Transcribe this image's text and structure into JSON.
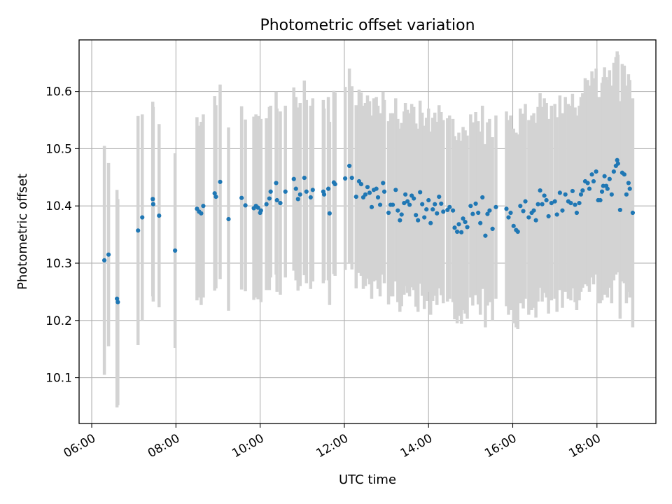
{
  "chart_data": {
    "type": "scatter",
    "title": "Photometric offset variation",
    "xlabel": "UTC time",
    "ylabel": "Photometric offset",
    "x_unit": "hours",
    "xlim": [
      5.7,
      19.4
    ],
    "ylim": [
      10.02,
      10.69
    ],
    "x_ticks": [
      6,
      8,
      10,
      12,
      14,
      16,
      18
    ],
    "x_tick_labels": [
      "06:00",
      "08:00",
      "10:00",
      "12:00",
      "14:00",
      "16:00",
      "18:00"
    ],
    "y_ticks": [
      10.1,
      10.2,
      10.3,
      10.4,
      10.5,
      10.6
    ],
    "y_tick_labels": [
      "10.1",
      "10.2",
      "10.3",
      "10.4",
      "10.5",
      "10.6"
    ],
    "grid": true,
    "colors": {
      "points": "#1f77b4",
      "error_bars": "#d3d3d3",
      "grid": "#b0b0b0"
    },
    "points": [
      [
        6.3,
        10.305,
        0.2
      ],
      [
        6.4,
        10.315,
        0.16
      ],
      [
        6.6,
        10.238,
        0.19
      ],
      [
        6.62,
        10.232,
        0.18
      ],
      [
        7.1,
        10.357,
        0.2
      ],
      [
        7.2,
        10.38,
        0.18
      ],
      [
        7.45,
        10.412,
        0.17
      ],
      [
        7.46,
        10.403,
        0.17
      ],
      [
        7.6,
        10.383,
        0.16
      ],
      [
        7.98,
        10.322,
        0.17
      ],
      [
        8.5,
        10.395,
        0.16
      ],
      [
        8.55,
        10.39,
        0.15
      ],
      [
        8.6,
        10.387,
        0.16
      ],
      [
        8.65,
        10.4,
        0.16
      ],
      [
        8.92,
        10.422,
        0.17
      ],
      [
        8.95,
        10.416,
        0.16
      ],
      [
        9.05,
        10.442,
        0.17
      ],
      [
        9.25,
        10.377,
        0.16
      ],
      [
        9.56,
        10.414,
        0.16
      ],
      [
        9.65,
        10.401,
        0.15
      ],
      [
        9.85,
        10.396,
        0.16
      ],
      [
        9.9,
        10.4,
        0.16
      ],
      [
        9.95,
        10.397,
        0.16
      ],
      [
        10.0,
        10.388,
        0.15
      ],
      [
        10.02,
        10.392,
        0.16
      ],
      [
        10.15,
        10.403,
        0.15
      ],
      [
        10.22,
        10.413,
        0.16
      ],
      [
        10.25,
        10.425,
        0.15
      ],
      [
        10.38,
        10.44,
        0.16
      ],
      [
        10.4,
        10.41,
        0.16
      ],
      [
        10.48,
        10.405,
        0.16
      ],
      [
        10.6,
        10.425,
        0.15
      ],
      [
        10.8,
        10.447,
        0.16
      ],
      [
        10.85,
        10.43,
        0.16
      ],
      [
        10.9,
        10.412,
        0.16
      ],
      [
        10.95,
        10.42,
        0.16
      ],
      [
        11.05,
        10.449,
        0.17
      ],
      [
        11.1,
        10.425,
        0.16
      ],
      [
        11.2,
        10.415,
        0.16
      ],
      [
        11.25,
        10.428,
        0.16
      ],
      [
        11.5,
        10.425,
        0.16
      ],
      [
        11.52,
        10.42,
        0.15
      ],
      [
        11.62,
        10.43,
        0.16
      ],
      [
        11.65,
        10.387,
        0.16
      ],
      [
        11.75,
        10.441,
        0.16
      ],
      [
        11.78,
        10.438,
        0.16
      ],
      [
        12.02,
        10.448,
        0.16
      ],
      [
        12.12,
        10.47,
        0.17
      ],
      [
        12.18,
        10.449,
        0.16
      ],
      [
        12.28,
        10.416,
        0.16
      ],
      [
        12.35,
        10.443,
        0.16
      ],
      [
        12.4,
        10.438,
        0.16
      ],
      [
        12.45,
        10.415,
        0.16
      ],
      [
        12.5,
        10.42,
        0.16
      ],
      [
        12.55,
        10.433,
        0.16
      ],
      [
        12.6,
        10.423,
        0.16
      ],
      [
        12.65,
        10.398,
        0.16
      ],
      [
        12.7,
        10.428,
        0.16
      ],
      [
        12.76,
        10.43,
        0.16
      ],
      [
        12.8,
        10.415,
        0.16
      ],
      [
        12.85,
        10.402,
        0.16
      ],
      [
        12.92,
        10.44,
        0.16
      ],
      [
        12.95,
        10.425,
        0.16
      ],
      [
        13.05,
        10.388,
        0.16
      ],
      [
        13.1,
        10.402,
        0.16
      ],
      [
        13.15,
        10.402,
        0.16
      ],
      [
        13.22,
        10.428,
        0.16
      ],
      [
        13.27,
        10.392,
        0.16
      ],
      [
        13.32,
        10.375,
        0.16
      ],
      [
        13.36,
        10.385,
        0.16
      ],
      [
        13.42,
        10.405,
        0.16
      ],
      [
        13.45,
        10.42,
        0.16
      ],
      [
        13.5,
        10.408,
        0.16
      ],
      [
        13.55,
        10.402,
        0.16
      ],
      [
        13.6,
        10.418,
        0.16
      ],
      [
        13.65,
        10.413,
        0.16
      ],
      [
        13.7,
        10.384,
        0.16
      ],
      [
        13.75,
        10.375,
        0.16
      ],
      [
        13.8,
        10.424,
        0.16
      ],
      [
        13.85,
        10.403,
        0.16
      ],
      [
        13.9,
        10.38,
        0.16
      ],
      [
        13.95,
        10.394,
        0.16
      ],
      [
        14.0,
        10.41,
        0.16
      ],
      [
        14.05,
        10.37,
        0.16
      ],
      [
        14.1,
        10.394,
        0.16
      ],
      [
        14.15,
        10.403,
        0.16
      ],
      [
        14.2,
        10.387,
        0.16
      ],
      [
        14.25,
        10.416,
        0.16
      ],
      [
        14.3,
        10.404,
        0.16
      ],
      [
        14.35,
        10.39,
        0.16
      ],
      [
        14.45,
        10.393,
        0.16
      ],
      [
        14.5,
        10.398,
        0.16
      ],
      [
        14.58,
        10.392,
        0.16
      ],
      [
        14.62,
        10.362,
        0.16
      ],
      [
        14.68,
        10.355,
        0.16
      ],
      [
        14.72,
        10.368,
        0.16
      ],
      [
        14.78,
        10.354,
        0.16
      ],
      [
        14.82,
        10.378,
        0.16
      ],
      [
        14.87,
        10.372,
        0.16
      ],
      [
        14.92,
        10.363,
        0.16
      ],
      [
        15.0,
        10.4,
        0.16
      ],
      [
        15.05,
        10.386,
        0.16
      ],
      [
        15.12,
        10.404,
        0.16
      ],
      [
        15.18,
        10.388,
        0.16
      ],
      [
        15.23,
        10.37,
        0.16
      ],
      [
        15.28,
        10.415,
        0.16
      ],
      [
        15.35,
        10.348,
        0.16
      ],
      [
        15.4,
        10.386,
        0.16
      ],
      [
        15.45,
        10.392,
        0.16
      ],
      [
        15.52,
        10.36,
        0.16
      ],
      [
        15.6,
        10.398,
        0.16
      ],
      [
        15.85,
        10.395,
        0.17
      ],
      [
        15.9,
        10.38,
        0.17
      ],
      [
        15.95,
        10.388,
        0.17
      ],
      [
        16.02,
        10.365,
        0.17
      ],
      [
        16.08,
        10.358,
        0.17
      ],
      [
        16.12,
        10.355,
        0.17
      ],
      [
        16.18,
        10.4,
        0.17
      ],
      [
        16.25,
        10.391,
        0.17
      ],
      [
        16.3,
        10.408,
        0.17
      ],
      [
        16.38,
        10.38,
        0.17
      ],
      [
        16.45,
        10.388,
        0.17
      ],
      [
        16.5,
        10.392,
        0.17
      ],
      [
        16.55,
        10.375,
        0.17
      ],
      [
        16.6,
        10.403,
        0.17
      ],
      [
        16.65,
        10.427,
        0.17
      ],
      [
        16.7,
        10.403,
        0.17
      ],
      [
        16.75,
        10.418,
        0.17
      ],
      [
        16.8,
        10.41,
        0.17
      ],
      [
        16.85,
        10.382,
        0.17
      ],
      [
        16.92,
        10.405,
        0.17
      ],
      [
        17.0,
        10.408,
        0.17
      ],
      [
        17.05,
        10.385,
        0.17
      ],
      [
        17.12,
        10.423,
        0.17
      ],
      [
        17.18,
        10.392,
        0.17
      ],
      [
        17.25,
        10.42,
        0.17
      ],
      [
        17.32,
        10.408,
        0.17
      ],
      [
        17.38,
        10.405,
        0.17
      ],
      [
        17.42,
        10.426,
        0.17
      ],
      [
        17.48,
        10.402,
        0.17
      ],
      [
        17.52,
        10.388,
        0.17
      ],
      [
        17.58,
        10.405,
        0.17
      ],
      [
        17.62,
        10.42,
        0.17
      ],
      [
        17.66,
        10.427,
        0.17
      ],
      [
        17.72,
        10.443,
        0.18
      ],
      [
        17.78,
        10.44,
        0.18
      ],
      [
        17.82,
        10.43,
        0.18
      ],
      [
        17.88,
        10.455,
        0.18
      ],
      [
        17.92,
        10.443,
        0.18
      ],
      [
        17.98,
        10.46,
        0.18
      ],
      [
        18.03,
        10.41,
        0.18
      ],
      [
        18.08,
        10.41,
        0.18
      ],
      [
        18.12,
        10.425,
        0.19
      ],
      [
        18.15,
        10.435,
        0.19
      ],
      [
        18.18,
        10.452,
        0.19
      ],
      [
        18.22,
        10.435,
        0.19
      ],
      [
        18.25,
        10.43,
        0.19
      ],
      [
        18.3,
        10.447,
        0.19
      ],
      [
        18.35,
        10.42,
        0.19
      ],
      [
        18.4,
        10.46,
        0.19
      ],
      [
        18.45,
        10.47,
        0.19
      ],
      [
        18.48,
        10.48,
        0.19
      ],
      [
        18.5,
        10.474,
        0.19
      ],
      [
        18.55,
        10.393,
        0.19
      ],
      [
        18.6,
        10.458,
        0.19
      ],
      [
        18.65,
        10.455,
        0.19
      ],
      [
        18.7,
        10.42,
        0.19
      ],
      [
        18.75,
        10.44,
        0.19
      ],
      [
        18.78,
        10.43,
        0.19
      ],
      [
        18.85,
        10.388,
        0.2
      ]
    ]
  }
}
